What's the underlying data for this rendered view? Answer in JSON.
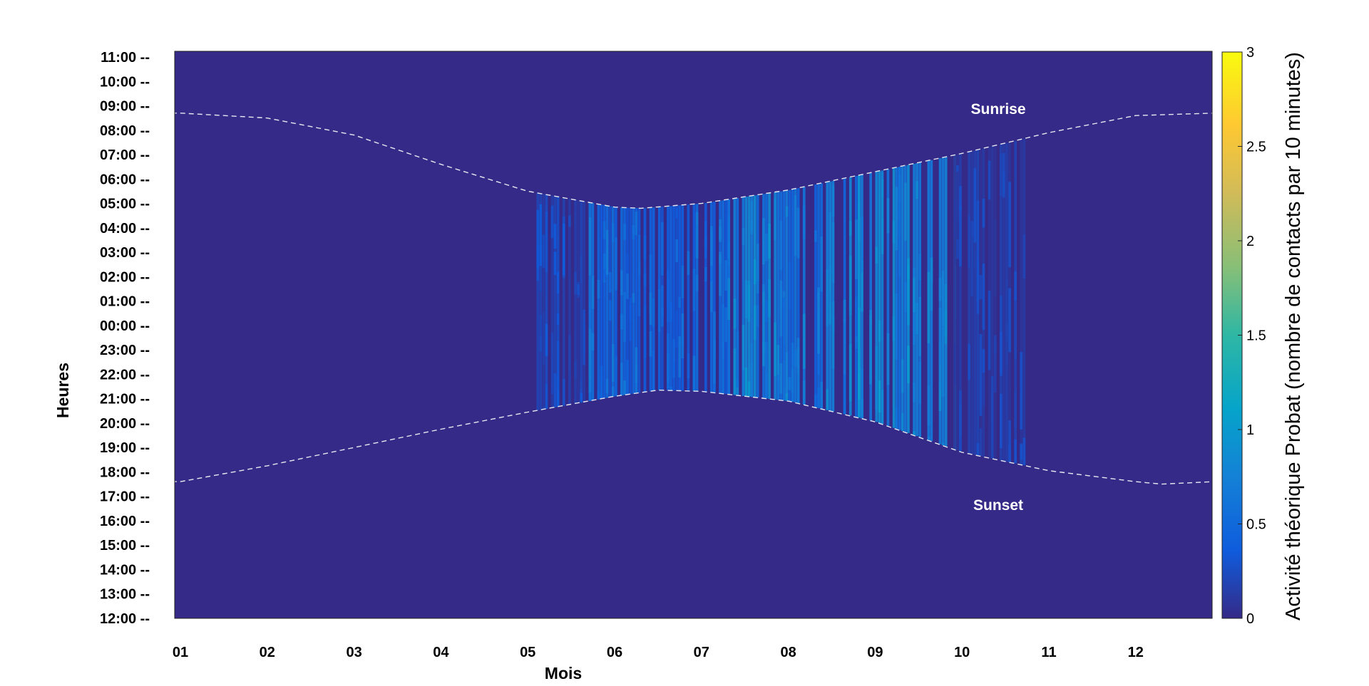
{
  "chart_data": {
    "type": "heatmap",
    "title": "",
    "xlabel": "Mois",
    "ylabel": "Heures",
    "x_tick_labels": [
      "01",
      "02",
      "03",
      "04",
      "05",
      "06",
      "07",
      "08",
      "09",
      "10",
      "11",
      "12"
    ],
    "y_tick_labels": [
      "11:00 --",
      "10:00 --",
      "09:00 --",
      "08:00 --",
      "07:00 --",
      "06:00 --",
      "05:00 --",
      "04:00 --",
      "03:00 --",
      "02:00 --",
      "01:00 --",
      "00:00 --",
      "23:00 --",
      "22:00 --",
      "21:00 --",
      "20:00 --",
      "19:00 --",
      "18:00 --",
      "17:00 --",
      "16:00 --",
      "15:00 --",
      "14:00 --",
      "13:00 --",
      "12:00 --"
    ],
    "colorbar": {
      "label": "Activité théorique Probat (nombre de contacts par 10 minutes)",
      "range": [
        0,
        3
      ],
      "ticks": [
        "0",
        "0.5",
        "1",
        "1.5",
        "2",
        "2.5",
        "3"
      ],
      "colormap": "parula",
      "background_color": "#352a87"
    },
    "annotations": {
      "sunrise": "Sunrise",
      "sunset": "Sunset"
    },
    "sunrise_curve": {
      "x_month": [
        1.0,
        2.0,
        3.0,
        4.0,
        5.0,
        6.0,
        6.3,
        7.0,
        8.0,
        9.0,
        10.0,
        11.0,
        12.0,
        12.9
      ],
      "hours_after_noon": [
        20.7,
        20.5,
        19.8,
        18.6,
        17.5,
        16.85,
        16.8,
        17.0,
        17.55,
        18.3,
        19.05,
        19.9,
        20.6,
        20.7
      ]
    },
    "sunset_curve": {
      "x_month": [
        1.0,
        2.0,
        3.0,
        4.0,
        5.0,
        6.0,
        6.5,
        7.0,
        8.0,
        9.0,
        10.0,
        11.0,
        12.0,
        12.3,
        12.9
      ],
      "hours_after_noon": [
        5.6,
        6.25,
        7.0,
        7.75,
        8.45,
        9.1,
        9.35,
        9.3,
        8.9,
        8.05,
        6.8,
        6.05,
        5.6,
        5.5,
        5.6
      ]
    },
    "activity_regions": [
      {
        "month_start": 5.1,
        "month_end": 5.7,
        "level_range": [
          0.1,
          0.3
        ]
      },
      {
        "month_start": 5.7,
        "month_end": 7.3,
        "level_range": [
          0.3,
          0.6
        ]
      },
      {
        "month_start": 7.3,
        "month_end": 8.0,
        "level_range": [
          0.5,
          0.9
        ]
      },
      {
        "month_start": 8.0,
        "month_end": 8.8,
        "level_range": [
          0.4,
          0.8
        ]
      },
      {
        "month_start": 8.8,
        "month_end": 9.9,
        "level_range": [
          0.5,
          0.95
        ]
      },
      {
        "month_start": 9.9,
        "month_end": 10.7,
        "level_range": [
          0.05,
          0.2
        ]
      }
    ]
  }
}
